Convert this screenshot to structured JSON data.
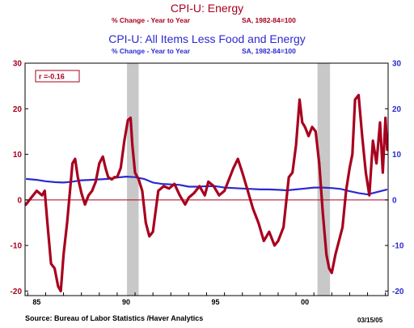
{
  "titles": {
    "title1": "CPI-U: Energy",
    "sub1_left": "% Change - Year to Year",
    "sub1_right": "SA, 1982-84=100",
    "title2": "CPI-U: All Items Less Food and Energy",
    "sub2_left": "% Change - Year to Year",
    "sub2_right": "SA, 1982-84=100"
  },
  "footer": {
    "source": "Source:  Bureau of Labor Statistics /Haver Analytics",
    "date": "03/15/05"
  },
  "colors": {
    "energy": "#a8001e",
    "core": "#2a2ad0",
    "recession": "#c8c8c8",
    "zero_line": "#a8001e"
  },
  "chart_data": {
    "type": "line",
    "annotation": "r =-0.16",
    "xlim": [
      1984.85,
      2005.15
    ],
    "x_ticks": [
      {
        "x": 1985.5,
        "label": "85"
      },
      {
        "x": 1990.5,
        "label": "90"
      },
      {
        "x": 1995.5,
        "label": "95"
      },
      {
        "x": 2000.5,
        "label": "00"
      }
    ],
    "y_left": {
      "ylim": [
        -21,
        30
      ],
      "ticks": [
        "30",
        "20",
        "10",
        "0",
        "-10",
        "-20"
      ],
      "values": [
        30,
        20,
        10,
        0,
        -10,
        -20
      ]
    },
    "y_right": {
      "ylim": [
        -21,
        30
      ],
      "ticks": [
        "30",
        "20",
        "10",
        "0",
        "-10",
        "-20"
      ],
      "values": [
        30,
        20,
        10,
        0,
        -10,
        -20
      ]
    },
    "recessions": [
      [
        1990.55,
        1991.2
      ],
      [
        2001.2,
        2001.9
      ]
    ],
    "series": [
      {
        "key": "energy",
        "x": [
          1984.9,
          1985.2,
          1985.5,
          1985.8,
          1985.95,
          1986.1,
          1986.3,
          1986.5,
          1986.7,
          1986.85,
          1987.0,
          1987.2,
          1987.5,
          1987.65,
          1987.8,
          1988.0,
          1988.2,
          1988.4,
          1988.6,
          1988.8,
          1989.0,
          1989.2,
          1989.35,
          1989.5,
          1989.7,
          1989.85,
          1990.0,
          1990.2,
          1990.4,
          1990.6,
          1990.75,
          1990.85,
          1991.0,
          1991.2,
          1991.4,
          1991.6,
          1991.8,
          1992.0,
          1992.3,
          1992.6,
          1992.9,
          1993.2,
          1993.5,
          1993.8,
          1994.0,
          1994.3,
          1994.6,
          1994.9,
          1995.1,
          1995.4,
          1995.7,
          1996.0,
          1996.3,
          1996.5,
          1996.75,
          1997.0,
          1997.3,
          1997.6,
          1997.9,
          1998.2,
          1998.5,
          1998.8,
          1999.0,
          1999.3,
          1999.6,
          1999.8,
          2000.0,
          2000.2,
          2000.35,
          2000.5,
          2000.7,
          2000.9,
          2001.1,
          2001.3,
          2001.5,
          2001.7,
          2001.85,
          2002.0,
          2002.2,
          2002.4,
          2002.6,
          2002.8,
          2003.0,
          2003.15,
          2003.3,
          2003.5,
          2003.7,
          2003.9,
          2004.1,
          2004.3,
          2004.5,
          2004.7,
          2004.85,
          2005.0,
          2005.1
        ],
        "values": [
          -1,
          0.5,
          2,
          1,
          2,
          -5,
          -14,
          -15,
          -19,
          -20,
          -12,
          -5,
          8,
          9,
          5,
          1.5,
          -1,
          1,
          2,
          4,
          8,
          9.5,
          7,
          5,
          4.5,
          5,
          5,
          7,
          13,
          17.5,
          18,
          12,
          6,
          4.5,
          2,
          -5,
          -8,
          -7,
          2,
          3,
          2.5,
          3.5,
          1,
          -1,
          0.5,
          1.5,
          3,
          1,
          4,
          3,
          1,
          2,
          5,
          7,
          9,
          6,
          2,
          -2,
          -5,
          -9,
          -7,
          -10,
          -9,
          -6,
          5,
          6,
          12,
          22,
          17,
          16,
          14,
          16,
          15,
          8,
          -3,
          -12,
          -15,
          -16,
          -12,
          -9,
          -6,
          2,
          7,
          10,
          22,
          23,
          14,
          6,
          1,
          13,
          8,
          17,
          6,
          18,
          11
        ]
      },
      {
        "key": "core",
        "x": [
          1984.9,
          1985.5,
          1986.0,
          1986.5,
          1987.0,
          1987.5,
          1988.0,
          1988.5,
          1989.0,
          1989.5,
          1990.0,
          1990.5,
          1991.0,
          1991.5,
          1992.0,
          1992.5,
          1993.0,
          1993.5,
          1994.0,
          1994.5,
          1995.0,
          1995.5,
          1996.0,
          1996.5,
          1997.0,
          1997.5,
          1998.0,
          1998.5,
          1999.0,
          1999.5,
          2000.0,
          2000.5,
          2001.0,
          2001.5,
          2002.0,
          2002.5,
          2003.0,
          2003.5,
          2004.0,
          2004.5,
          2005.1
        ],
        "values": [
          4.6,
          4.4,
          4.1,
          3.9,
          3.8,
          4.0,
          4.3,
          4.4,
          4.5,
          4.6,
          4.9,
          5.1,
          5.0,
          4.6,
          3.8,
          3.5,
          3.4,
          3.3,
          2.9,
          2.9,
          3.0,
          3.0,
          2.7,
          2.6,
          2.5,
          2.4,
          2.3,
          2.3,
          2.2,
          2.1,
          2.3,
          2.5,
          2.7,
          2.7,
          2.6,
          2.4,
          1.9,
          1.5,
          1.2,
          1.7,
          2.3
        ]
      }
    ]
  }
}
